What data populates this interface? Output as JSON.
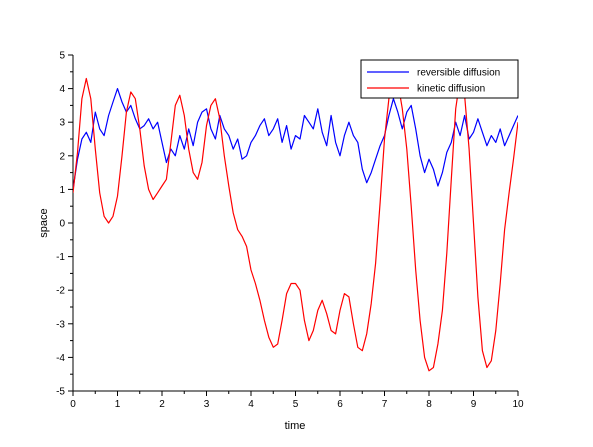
{
  "chart_data": {
    "type": "line",
    "title": "",
    "xlabel": "time",
    "ylabel": "space",
    "xlim": [
      0,
      10
    ],
    "ylim": [
      -5,
      5
    ],
    "xticks": [
      "0",
      "1",
      "2",
      "3",
      "4",
      "5",
      "6",
      "7",
      "8",
      "9",
      "10"
    ],
    "yticks": [
      "-5",
      "-4",
      "-3",
      "-2",
      "-1",
      "0",
      "1",
      "2",
      "3",
      "4",
      "5"
    ],
    "grid": false,
    "legend_position": "top-right",
    "series": [
      {
        "name": "reversible diffusion",
        "color": "#0000ff",
        "x": [
          0,
          0.1,
          0.2,
          0.3,
          0.4,
          0.5,
          0.6,
          0.7,
          0.8,
          0.9,
          1.0,
          1.1,
          1.2,
          1.3,
          1.4,
          1.5,
          1.6,
          1.7,
          1.8,
          1.9,
          2.0,
          2.1,
          2.2,
          2.3,
          2.4,
          2.5,
          2.6,
          2.7,
          2.8,
          2.9,
          3.0,
          3.1,
          3.2,
          3.3,
          3.4,
          3.5,
          3.6,
          3.7,
          3.8,
          3.9,
          4.0,
          4.1,
          4.2,
          4.3,
          4.4,
          4.5,
          4.6,
          4.7,
          4.8,
          4.9,
          5.0,
          5.1,
          5.2,
          5.3,
          5.4,
          5.5,
          5.6,
          5.7,
          5.8,
          5.9,
          6.0,
          6.1,
          6.2,
          6.3,
          6.4,
          6.5,
          6.6,
          6.7,
          6.8,
          6.9,
          7.0,
          7.1,
          7.2,
          7.3,
          7.4,
          7.5,
          7.6,
          7.7,
          7.8,
          7.9,
          8.0,
          8.1,
          8.2,
          8.3,
          8.4,
          8.5,
          8.6,
          8.7,
          8.8,
          8.9,
          9.0,
          9.1,
          9.2,
          9.3,
          9.4,
          9.5,
          9.6,
          9.7,
          9.8,
          9.9,
          10.0
        ],
        "y": [
          1.0,
          1.9,
          2.5,
          2.7,
          2.4,
          3.3,
          2.8,
          2.6,
          3.2,
          3.6,
          4.0,
          3.6,
          3.3,
          3.5,
          3.1,
          2.8,
          2.9,
          3.1,
          2.8,
          3.0,
          2.4,
          1.8,
          2.2,
          2.0,
          2.6,
          2.2,
          2.8,
          2.3,
          3.0,
          3.3,
          3.4,
          2.8,
          2.5,
          3.2,
          2.8,
          2.6,
          2.2,
          2.5,
          1.9,
          2.0,
          2.4,
          2.6,
          2.9,
          3.1,
          2.6,
          2.8,
          3.1,
          2.4,
          2.9,
          2.2,
          2.6,
          2.5,
          3.2,
          3.0,
          2.8,
          3.4,
          2.7,
          2.3,
          3.2,
          2.4,
          2.0,
          2.6,
          3.0,
          2.6,
          2.4,
          1.6,
          1.2,
          1.5,
          1.9,
          2.3,
          2.6,
          3.2,
          3.7,
          3.3,
          2.8,
          3.3,
          3.5,
          2.8,
          2.0,
          1.5,
          1.9,
          1.6,
          1.1,
          1.5,
          2.1,
          2.4,
          3.0,
          2.6,
          3.2,
          2.5,
          2.7,
          3.1,
          2.7,
          2.3,
          2.6,
          2.4,
          2.8,
          2.3,
          2.6,
          2.9,
          3.2
        ]
      },
      {
        "name": "kinetic diffusion",
        "color": "#ff0000",
        "x": [
          0,
          0.1,
          0.2,
          0.3,
          0.4,
          0.5,
          0.6,
          0.7,
          0.8,
          0.9,
          1.0,
          1.1,
          1.2,
          1.3,
          1.4,
          1.5,
          1.6,
          1.7,
          1.8,
          1.9,
          2.0,
          2.1,
          2.2,
          2.3,
          2.4,
          2.5,
          2.6,
          2.7,
          2.8,
          2.9,
          3.0,
          3.1,
          3.2,
          3.3,
          3.4,
          3.5,
          3.6,
          3.7,
          3.8,
          3.9,
          4.0,
          4.1,
          4.2,
          4.3,
          4.4,
          4.5,
          4.6,
          4.7,
          4.8,
          4.9,
          5.0,
          5.1,
          5.2,
          5.3,
          5.4,
          5.5,
          5.6,
          5.7,
          5.8,
          5.9,
          6.0,
          6.1,
          6.2,
          6.3,
          6.4,
          6.5,
          6.6,
          6.7,
          6.8,
          6.9,
          7.0,
          7.1,
          7.2,
          7.3,
          7.4,
          7.5,
          7.6,
          7.7,
          7.8,
          7.9,
          8.0,
          8.1,
          8.2,
          8.3,
          8.4,
          8.5,
          8.6,
          8.7,
          8.8,
          8.9,
          9.0,
          9.1,
          9.2,
          9.3,
          9.4,
          9.5,
          9.6,
          9.7,
          9.8,
          9.9,
          10.0
        ],
        "y": [
          0.9,
          2.1,
          3.7,
          4.3,
          3.7,
          2.2,
          0.9,
          0.2,
          0.0,
          0.2,
          0.8,
          2.0,
          3.3,
          3.9,
          3.7,
          2.8,
          1.7,
          1.0,
          0.7,
          0.9,
          1.1,
          1.3,
          2.4,
          3.5,
          3.8,
          3.2,
          2.2,
          1.5,
          1.3,
          1.8,
          2.9,
          3.5,
          3.7,
          3.1,
          2.0,
          1.1,
          0.3,
          -0.2,
          -0.4,
          -0.7,
          -1.4,
          -1.8,
          -2.3,
          -2.9,
          -3.4,
          -3.7,
          -3.6,
          -2.9,
          -2.1,
          -1.8,
          -1.8,
          -2.0,
          -2.9,
          -3.5,
          -3.2,
          -2.6,
          -2.3,
          -2.7,
          -3.2,
          -3.3,
          -2.6,
          -2.1,
          -2.2,
          -3.0,
          -3.7,
          -3.8,
          -3.3,
          -2.4,
          -1.2,
          0.6,
          2.5,
          3.7,
          4.3,
          4.2,
          3.4,
          2.2,
          0.5,
          -1.4,
          -2.9,
          -4.0,
          -4.4,
          -4.3,
          -3.6,
          -2.6,
          -0.9,
          1.3,
          3.4,
          4.3,
          3.8,
          2.2,
          0.0,
          -2.2,
          -3.8,
          -4.3,
          -4.1,
          -3.2,
          -1.8,
          -0.2,
          0.9,
          1.9,
          3.0
        ]
      }
    ]
  }
}
